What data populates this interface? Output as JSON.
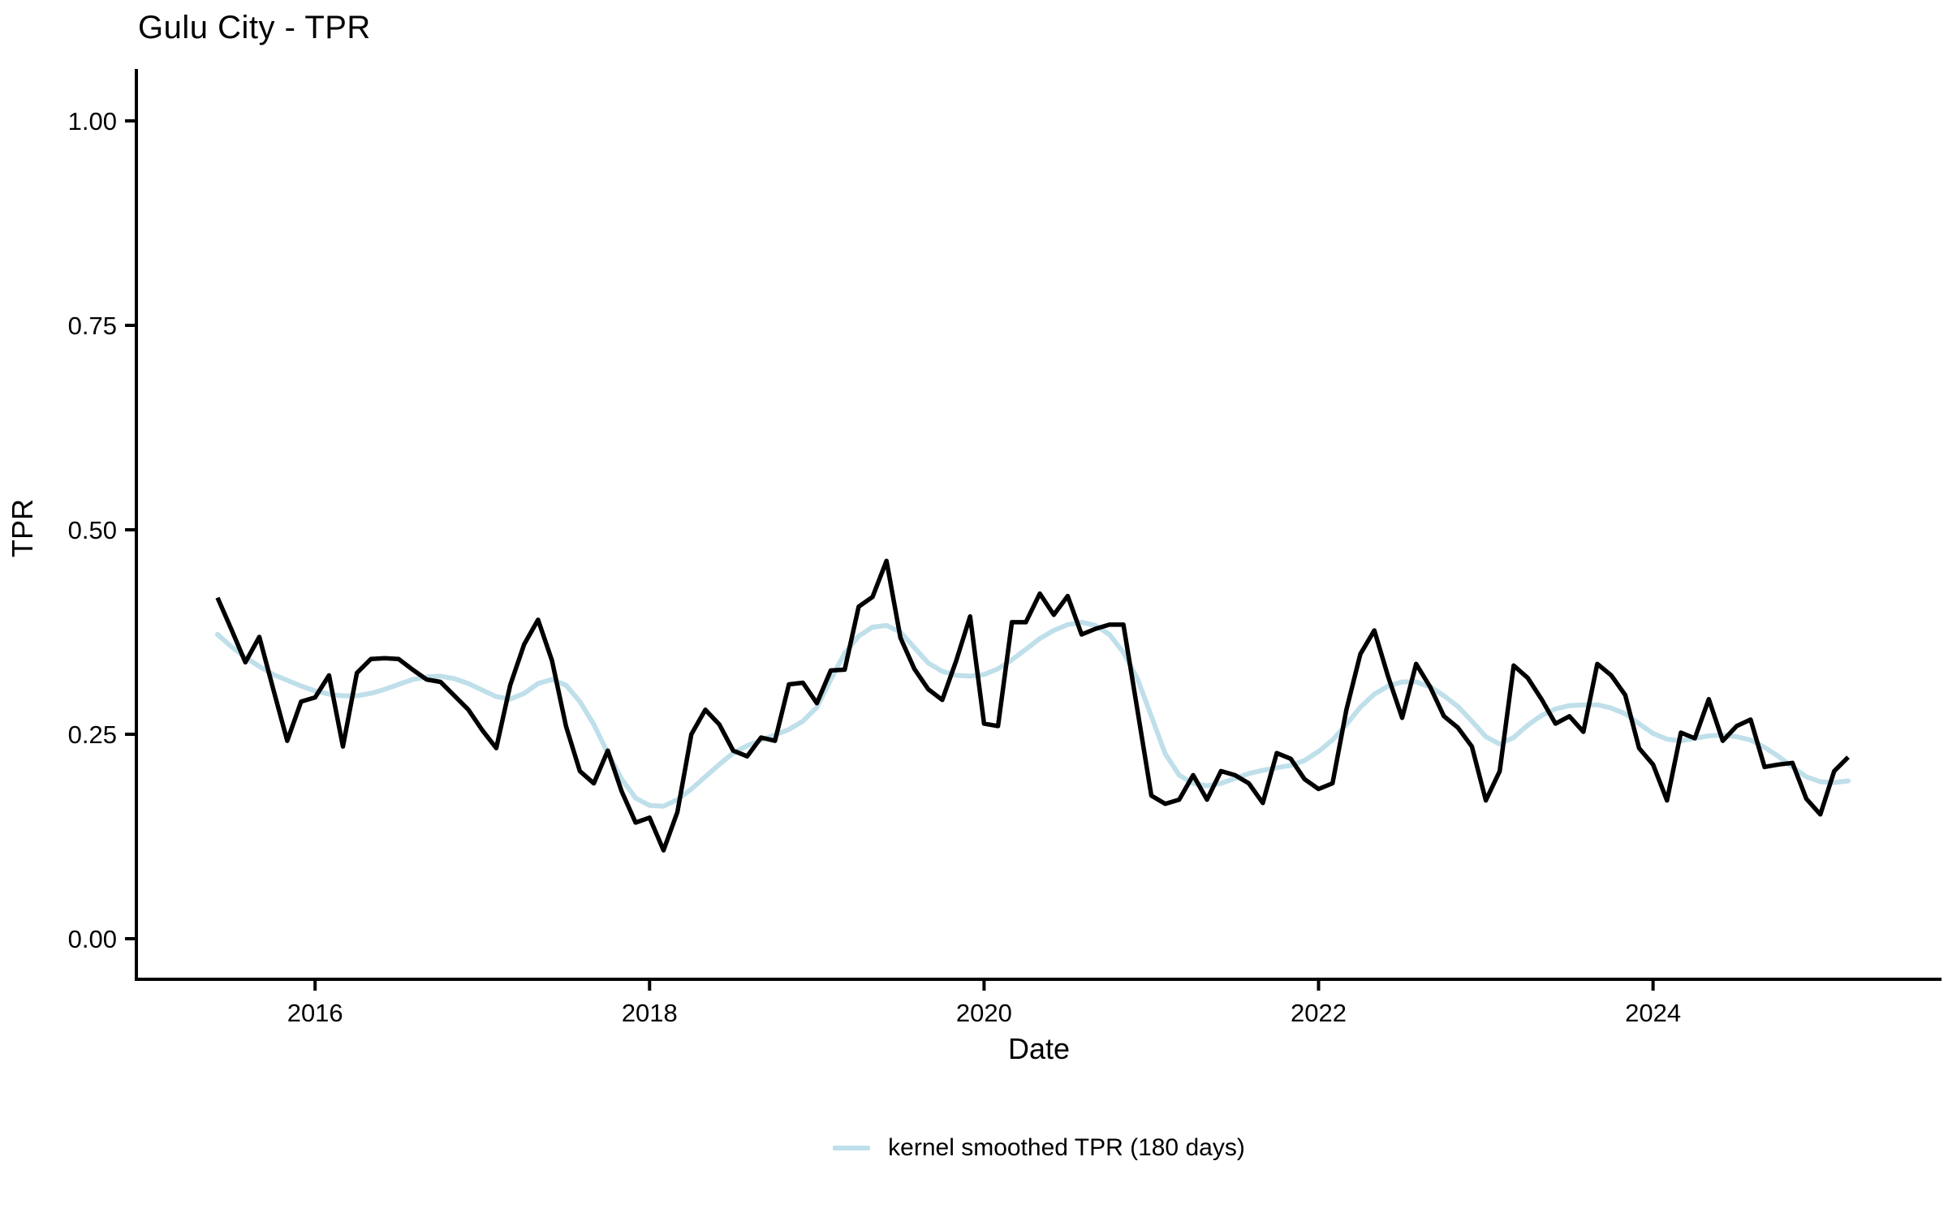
{
  "title": "Gulu City - TPR",
  "axes": {
    "x_label": "Date",
    "y_label": "TPR",
    "x_tick_labels": [
      "2016",
      "2018",
      "2020",
      "2022",
      "2024"
    ],
    "y_tick_labels": [
      "0.00",
      "0.25",
      "0.50",
      "0.75",
      "1.00"
    ]
  },
  "legend": {
    "label": "kernel smoothed TPR (180 days)",
    "color": "#bfdfea"
  },
  "chart_data": {
    "type": "line",
    "title": "Gulu City - TPR",
    "xlabel": "Date",
    "ylabel": "TPR",
    "x_start": "2015-06",
    "x_end": "2025-03",
    "frequency": "monthly",
    "ylim": [
      0,
      1.05
    ],
    "y_ticks": [
      0,
      0.25,
      0.5,
      0.75,
      1
    ],
    "x_tick_years": [
      2016,
      2018,
      2020,
      2022,
      2024
    ],
    "grid": "off",
    "legend_position": "bottom",
    "series": [
      {
        "name": "TPR",
        "color": "#000000",
        "values": [
          0.417,
          0.378,
          0.338,
          0.369,
          0.305,
          0.242,
          0.29,
          0.295,
          0.322,
          0.235,
          0.325,
          0.342,
          0.343,
          0.342,
          0.329,
          0.317,
          0.314,
          0.297,
          0.28,
          0.255,
          0.233,
          0.31,
          0.36,
          0.39,
          0.34,
          0.26,
          0.205,
          0.19,
          0.23,
          0.18,
          0.142,
          0.148,
          0.108,
          0.155,
          0.25,
          0.28,
          0.262,
          0.23,
          0.223,
          0.246,
          0.242,
          0.311,
          0.313,
          0.288,
          0.328,
          0.329,
          0.406,
          0.418,
          0.462,
          0.368,
          0.33,
          0.305,
          0.292,
          0.34,
          0.394,
          0.263,
          0.26,
          0.387,
          0.387,
          0.422,
          0.396,
          0.419,
          0.372,
          0.379,
          0.384,
          0.384,
          0.28,
          0.175,
          0.165,
          0.17,
          0.2,
          0.17,
          0.205,
          0.2,
          0.19,
          0.166,
          0.227,
          0.22,
          0.195,
          0.183,
          0.19,
          0.28,
          0.348,
          0.377,
          0.32,
          0.27,
          0.336,
          0.308,
          0.272,
          0.258,
          0.235,
          0.169,
          0.205,
          0.334,
          0.319,
          0.293,
          0.263,
          0.272,
          0.253,
          0.336,
          0.322,
          0.298,
          0.233,
          0.213,
          0.169,
          0.252,
          0.245,
          0.293,
          0.242,
          0.26,
          0.268,
          0.21,
          0.213,
          0.215,
          0.171,
          0.152,
          0.205,
          0.222
        ]
      },
      {
        "name": "kernel smoothed TPR (180 days)",
        "color": "#bfdfea",
        "values": [
          0.372,
          0.357,
          0.344,
          0.333,
          0.323,
          0.316,
          0.309,
          0.303,
          0.299,
          0.297,
          0.297,
          0.3,
          0.305,
          0.311,
          0.317,
          0.32,
          0.321,
          0.318,
          0.312,
          0.304,
          0.296,
          0.293,
          0.3,
          0.312,
          0.317,
          0.31,
          0.29,
          0.262,
          0.227,
          0.195,
          0.172,
          0.163,
          0.162,
          0.17,
          0.183,
          0.198,
          0.213,
          0.227,
          0.236,
          0.243,
          0.249,
          0.256,
          0.266,
          0.283,
          0.317,
          0.349,
          0.37,
          0.381,
          0.383,
          0.375,
          0.356,
          0.337,
          0.327,
          0.322,
          0.321,
          0.323,
          0.33,
          0.341,
          0.354,
          0.367,
          0.377,
          0.384,
          0.387,
          0.383,
          0.372,
          0.35,
          0.318,
          0.272,
          0.226,
          0.2,
          0.19,
          0.187,
          0.19,
          0.196,
          0.202,
          0.206,
          0.209,
          0.212,
          0.218,
          0.229,
          0.243,
          0.262,
          0.283,
          0.299,
          0.309,
          0.314,
          0.314,
          0.308,
          0.297,
          0.284,
          0.266,
          0.247,
          0.238,
          0.246,
          0.261,
          0.273,
          0.281,
          0.285,
          0.286,
          0.286,
          0.282,
          0.275,
          0.263,
          0.251,
          0.244,
          0.242,
          0.245,
          0.248,
          0.249,
          0.247,
          0.243,
          0.234,
          0.223,
          0.21,
          0.198,
          0.192,
          0.191,
          0.193
        ]
      }
    ]
  }
}
